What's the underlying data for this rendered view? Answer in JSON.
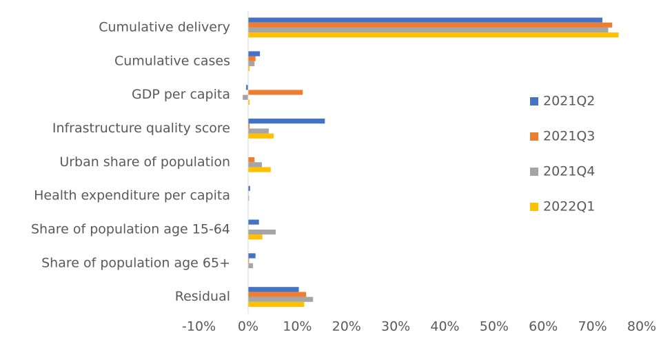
{
  "chart_data": {
    "type": "bar",
    "orientation": "horizontal",
    "categories": [
      "Cumulative delivery",
      "Cumulative cases",
      "GDP per capita",
      "Infrastructure quality score",
      "Urban share of population",
      "Health expenditure per capita",
      "Share of population age 15-64",
      "Share of population age 65+",
      "Residual"
    ],
    "series": [
      {
        "name": "2021Q2",
        "color": "#4472c4",
        "values": [
          72.0,
          2.4,
          -0.4,
          15.6,
          0,
          0.4,
          2.2,
          1.5,
          10.3
        ]
      },
      {
        "name": "2021Q3",
        "color": "#ed7d31",
        "values": [
          74.0,
          1.5,
          11.1,
          0.3,
          1.3,
          0.1,
          0.1,
          0.2,
          11.8
        ]
      },
      {
        "name": "2021Q4",
        "color": "#a5a5a5",
        "values": [
          73.2,
          1.3,
          -1.1,
          4.2,
          2.8,
          0.2,
          5.6,
          1.0,
          13.2
        ]
      },
      {
        "name": "2022Q1",
        "color": "#ffc000",
        "values": [
          75.3,
          0.3,
          0.3,
          5.2,
          4.6,
          0,
          2.9,
          0,
          11.4
        ]
      }
    ],
    "xlim": [
      -10,
      80
    ],
    "xticks": [
      {
        "value": -10,
        "label": "-10%"
      },
      {
        "value": 0,
        "label": "0%"
      },
      {
        "value": 10,
        "label": "10%"
      },
      {
        "value": 20,
        "label": "20%"
      },
      {
        "value": 30,
        "label": "30%"
      },
      {
        "value": 40,
        "label": "40%"
      },
      {
        "value": 50,
        "label": "50%"
      },
      {
        "value": 60,
        "label": "60%"
      },
      {
        "value": 70,
        "label": "70%"
      },
      {
        "value": 80,
        "label": "80%"
      }
    ],
    "legend": "right"
  }
}
